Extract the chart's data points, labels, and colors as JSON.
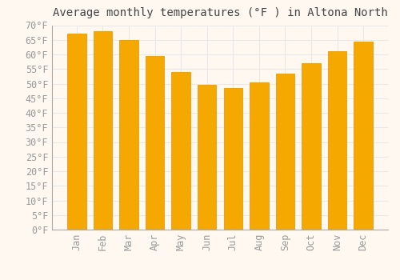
{
  "title": "Average monthly temperatures (°F ) in Altona North",
  "months": [
    "Jan",
    "Feb",
    "Mar",
    "Apr",
    "May",
    "Jun",
    "Jul",
    "Aug",
    "Sep",
    "Oct",
    "Nov",
    "Dec"
  ],
  "values": [
    67.0,
    68.0,
    65.0,
    59.5,
    54.0,
    49.5,
    48.5,
    50.5,
    53.5,
    57.0,
    61.0,
    64.5
  ],
  "bar_color_top": "#F5A800",
  "bar_color_bottom": "#FFD060",
  "bar_edge_color": "#E09000",
  "ylim": [
    0,
    70
  ],
  "ytick_step": 5,
  "background_color": "#FFF8F0",
  "grid_color": "#E8E8E8",
  "title_fontsize": 10,
  "tick_fontsize": 8.5,
  "font_family": "monospace",
  "tick_color": "#999999",
  "title_color": "#444444"
}
